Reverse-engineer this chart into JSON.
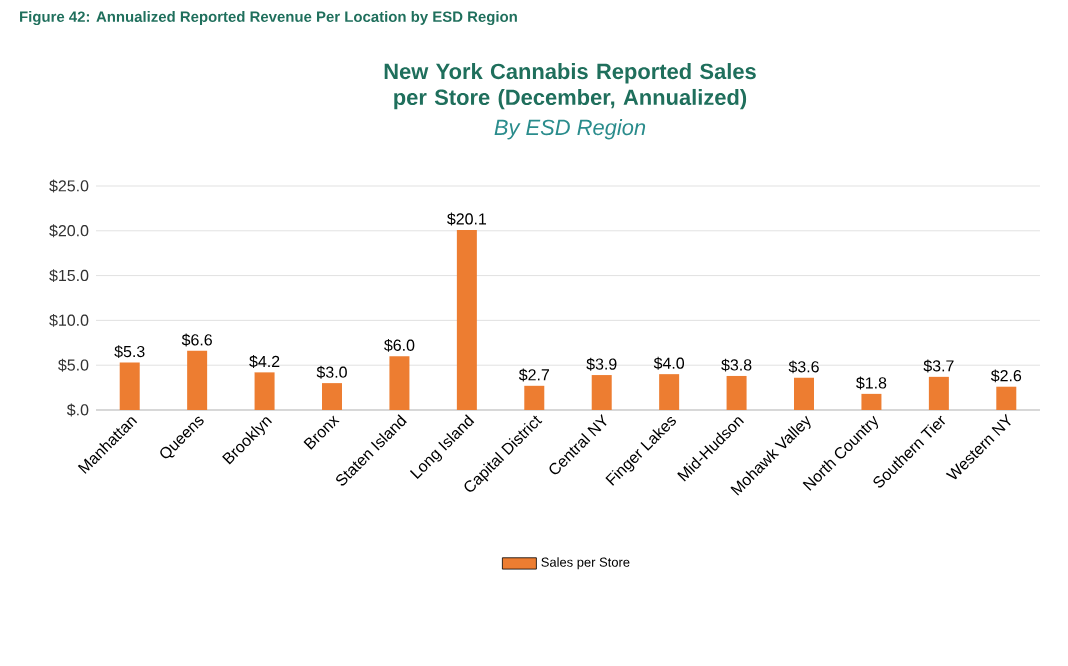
{
  "chart_data": {
    "type": "bar",
    "title": "New York Cannabis Reported Sales per Store (December, Annualized)",
    "subtitle": "By ESD Region",
    "annotations": [
      "Figure 42: Annualized Reported Revenue Per Location by ESD Region"
    ],
    "categories": [
      "Manhattan",
      "Queens",
      "Brooklyn",
      "Bronx",
      "Staten Island",
      "Long Island",
      "Capital District",
      "Central NY",
      "Finger Lakes",
      "Mid-Hudson",
      "Mohawk Valley",
      "North Country",
      "Southern Tier",
      "Western NY"
    ],
    "series": [
      {
        "name": "Sales per Store",
        "color": "#ed7d31",
        "values": [
          5.3,
          6.6,
          4.2,
          3.0,
          6.0,
          20.1,
          2.7,
          3.9,
          4.0,
          3.8,
          3.6,
          1.8,
          3.7,
          2.6
        ],
        "value_labels": [
          "$5.3",
          "$6.6",
          "$4.2",
          "$3.0",
          "$6.0",
          "$20.1",
          "$2.7",
          "$3.9",
          "$4.0",
          "$3.8",
          "$3.6",
          "$1.8",
          "$3.7",
          "$2.6"
        ]
      }
    ],
    "ylim": [
      0,
      25
    ],
    "yticks": [
      {
        "value": 0,
        "label": "$.0"
      },
      {
        "value": 5,
        "label": "$5.0"
      },
      {
        "value": 10,
        "label": "$10.0"
      },
      {
        "value": 15,
        "label": "$15.0"
      },
      {
        "value": 20,
        "label": "$20.0"
      },
      {
        "value": 25,
        "label": "$25.0"
      }
    ],
    "grid": "y",
    "legend": "bottom"
  }
}
